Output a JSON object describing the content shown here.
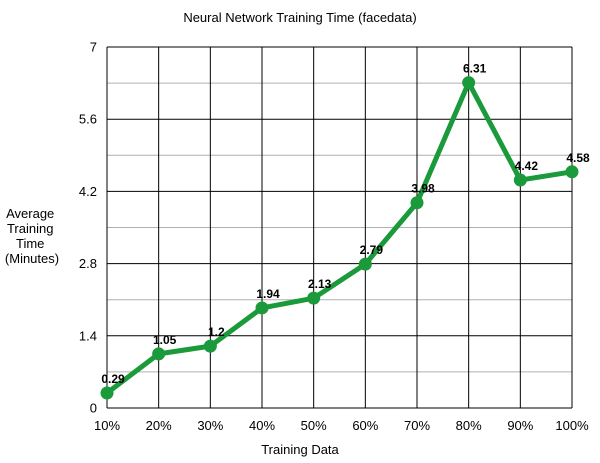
{
  "chart_data": {
    "type": "line",
    "title": "Neural Network Training Time (facedata)",
    "xlabel": "Training Data",
    "ylabel_lines": [
      "Average",
      "Training",
      "Time",
      "(Minutes)"
    ],
    "categories": [
      "10%",
      "20%",
      "30%",
      "40%",
      "50%",
      "60%",
      "70%",
      "80%",
      "90%",
      "100%"
    ],
    "series": [
      {
        "values": [
          0.29,
          1.05,
          1.2,
          1.94,
          2.13,
          2.79,
          3.98,
          6.31,
          4.42,
          4.58
        ],
        "labels": [
          "0.29",
          "1.05",
          "1.2",
          "1.94",
          "2.13",
          "2.79",
          "3.98",
          "6.31",
          "4.42",
          "4.58"
        ],
        "color": "#1a9a3a"
      }
    ],
    "ylim": [
      0,
      7
    ],
    "yticks": [
      "0",
      "1.4",
      "2.8",
      "4.2",
      "5.6",
      "7"
    ],
    "minor_grid": true,
    "grid": true
  }
}
